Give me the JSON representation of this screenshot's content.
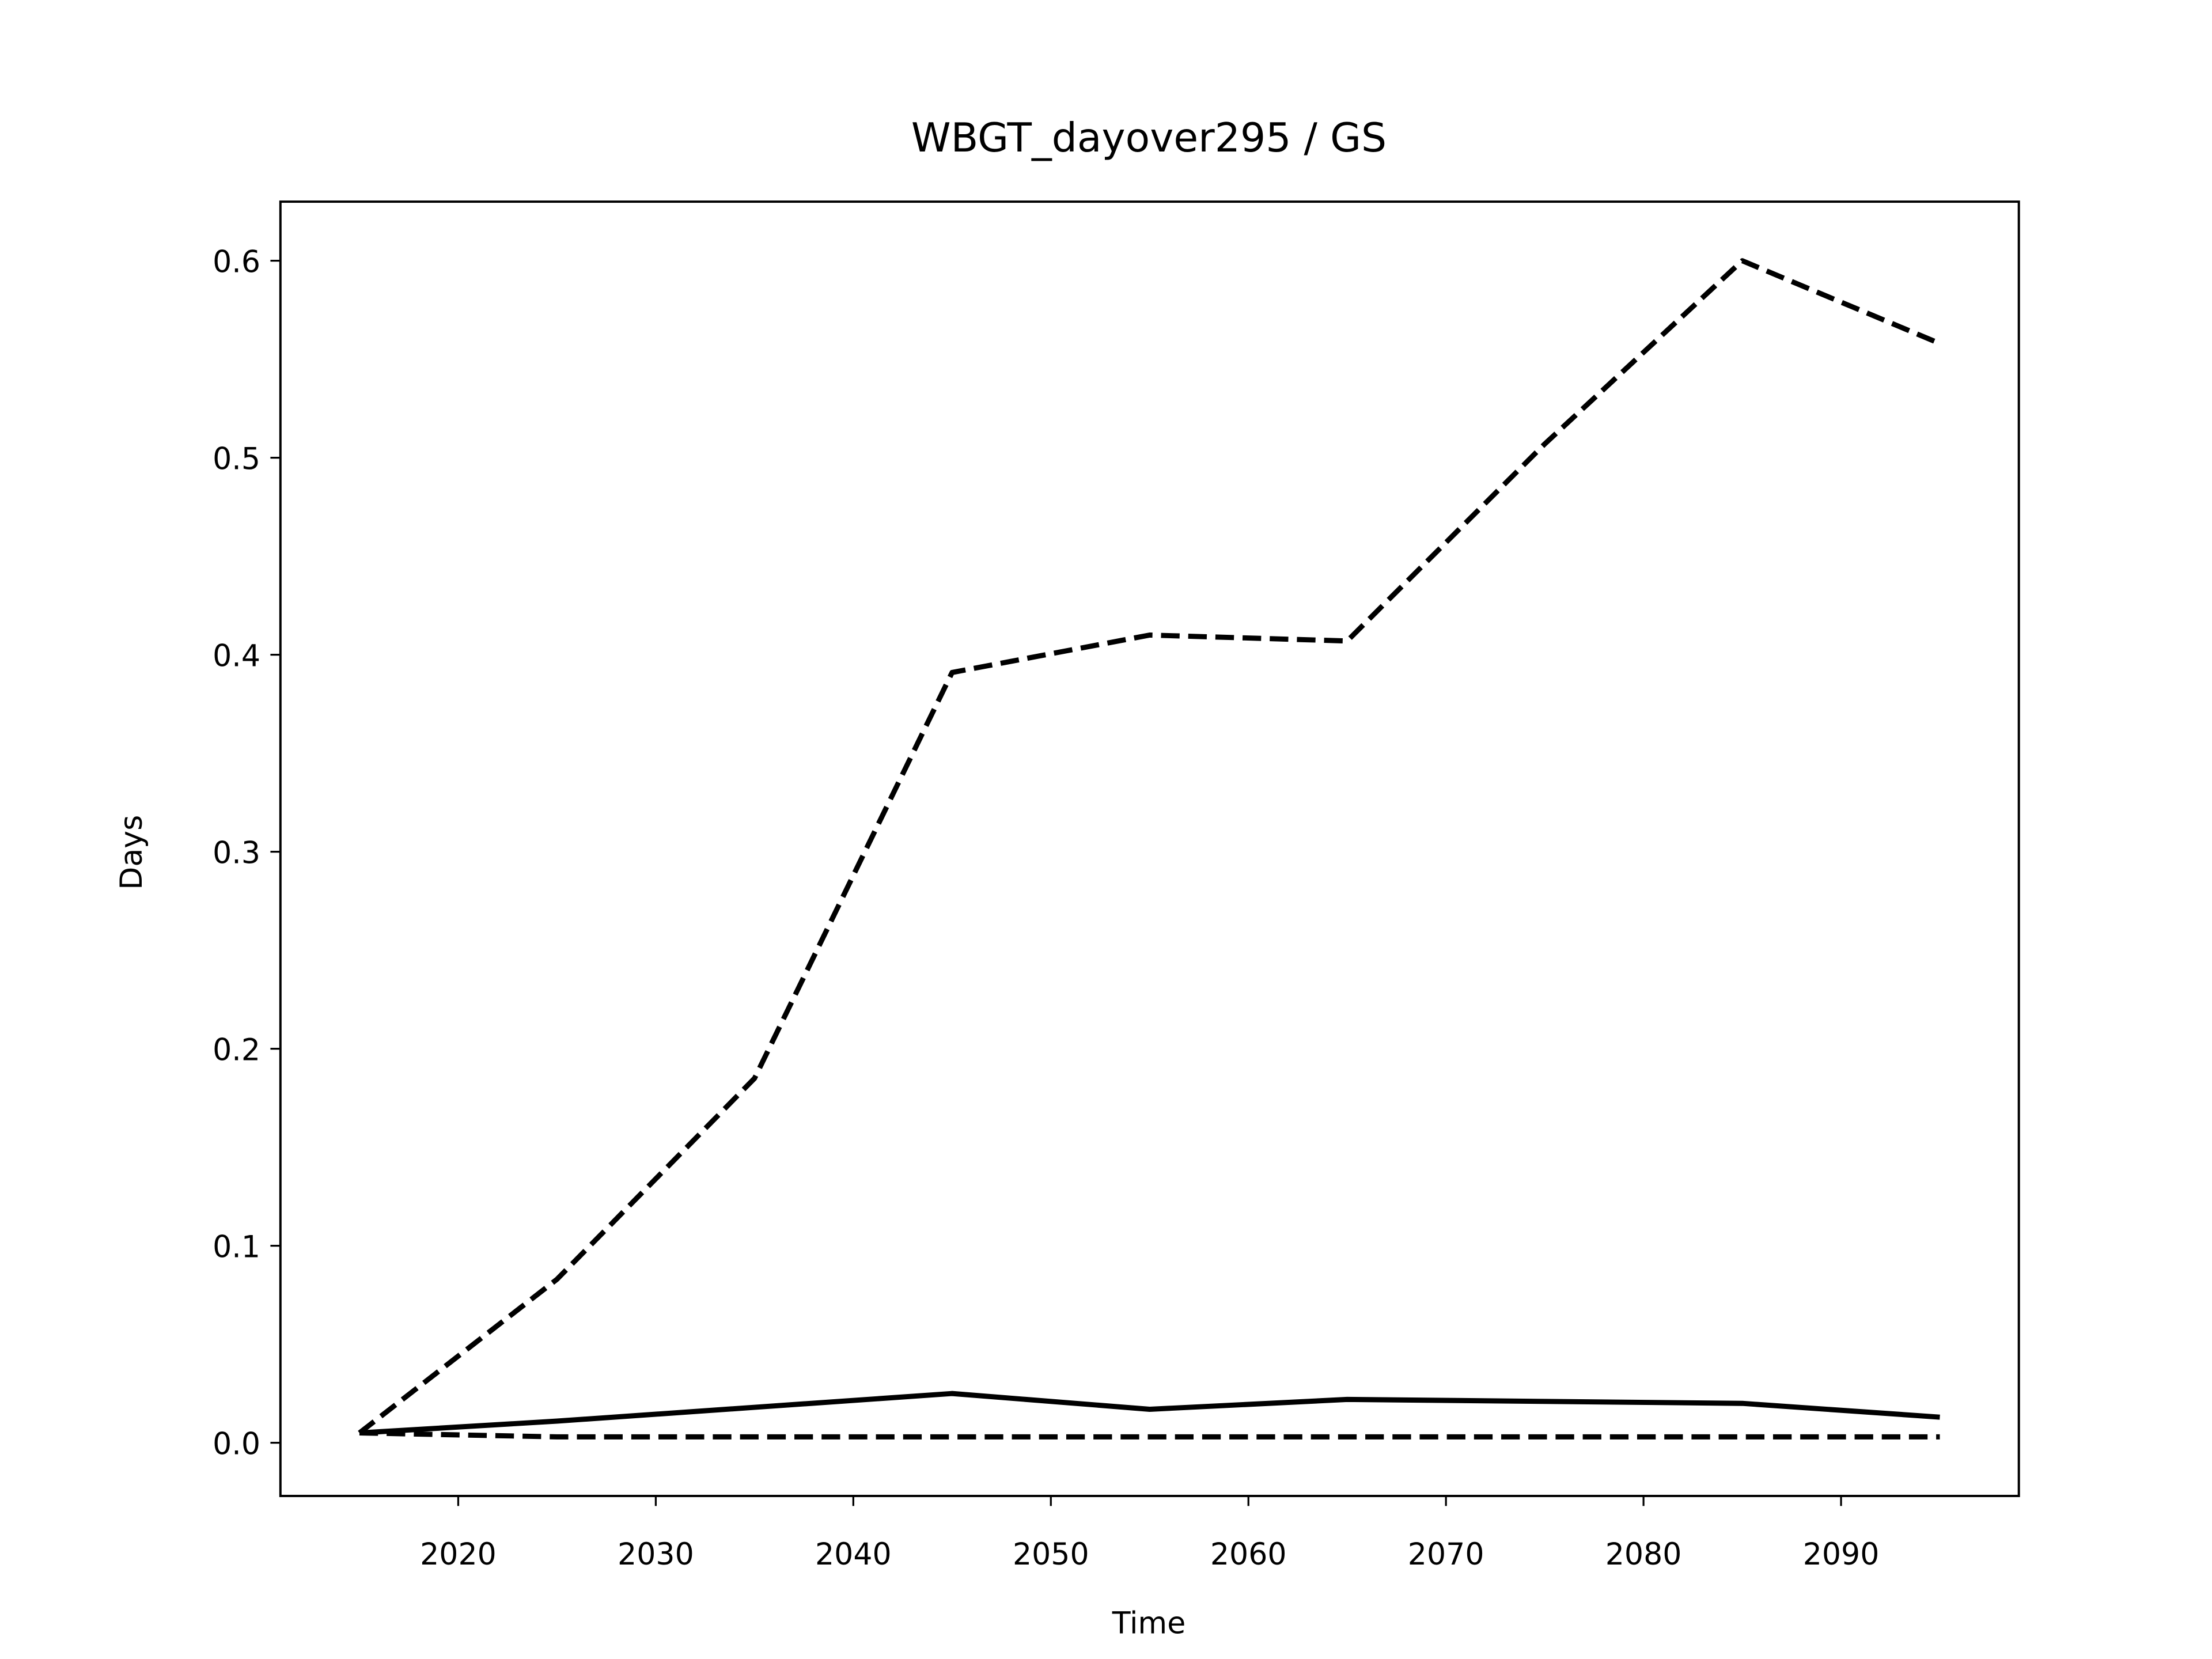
{
  "chart_data": {
    "type": "line",
    "title": "WBGT_dayover295 / GS",
    "xlabel": "Time",
    "ylabel": "Days",
    "x": [
      2015,
      2025,
      2035,
      2045,
      2055,
      2065,
      2075,
      2085,
      2095
    ],
    "series": [
      {
        "color": "#000000",
        "linestyle": "dashed",
        "values": [
          0.005,
          0.083,
          0.185,
          0.391,
          0.41,
          0.407,
          0.507,
          0.6,
          0.558
        ]
      },
      {
        "color": "#000000",
        "linestyle": "solid",
        "values": [
          0.005,
          0.011,
          0.018,
          0.025,
          0.017,
          0.022,
          0.021,
          0.02,
          0.013
        ]
      },
      {
        "color": "#000000",
        "linestyle": "dashed",
        "values": [
          0.005,
          0.003,
          0.003,
          0.003,
          0.003,
          0.003,
          0.003,
          0.003,
          0.003
        ]
      }
    ],
    "xlim": [
      2011,
      2099
    ],
    "ylim": [
      -0.027,
      0.63
    ],
    "xticks": [
      2020,
      2030,
      2040,
      2050,
      2060,
      2070,
      2080,
      2090
    ],
    "yticks": [
      {
        "value": 0,
        "label": "0.0"
      },
      0.1,
      0.2,
      0.3,
      0.4,
      0.5,
      0.6
    ],
    "grid": false
  }
}
